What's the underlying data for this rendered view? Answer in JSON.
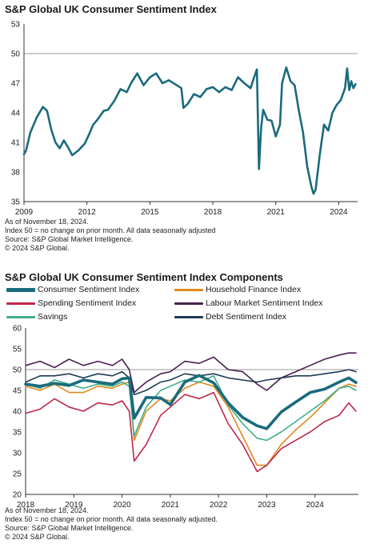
{
  "chart_data": [
    {
      "type": "line",
      "title": "S&P Global UK Consumer Sentiment Index",
      "xlabel": "",
      "ylabel": "",
      "ylim": [
        35,
        53
      ],
      "xlim": [
        2009.0,
        2024.9
      ],
      "yticks": [
        35,
        38,
        41,
        44,
        47,
        50,
        53
      ],
      "xticks": [
        "2009",
        "2012",
        "2015",
        "2018",
        "2021",
        "2024"
      ],
      "reference_line": 50,
      "grid": false,
      "colors": {
        "series": "#1a6b7c",
        "reference": "#999999",
        "axis": "#333333"
      },
      "series": [
        {
          "x": [
            2009.0,
            2009.1,
            2009.3,
            2009.6,
            2009.9,
            2010.1,
            2010.3,
            2010.5,
            2010.7,
            2010.9,
            2011.1,
            2011.3,
            2011.6,
            2011.9,
            2012.1,
            2012.3,
            2012.5,
            2012.8,
            2013.0,
            2013.3,
            2013.6,
            2013.9,
            2014.1,
            2014.4,
            2014.7,
            2015.0,
            2015.3,
            2015.6,
            2015.9,
            2016.2,
            2016.5,
            2016.6,
            2016.8,
            2017.1,
            2017.4,
            2017.7,
            2018.0,
            2018.3,
            2018.6,
            2018.9,
            2019.2,
            2019.5,
            2019.8,
            2020.0,
            2020.1,
            2020.2,
            2020.3,
            2020.4,
            2020.6,
            2020.8,
            2021.0,
            2021.2,
            2021.3,
            2021.5,
            2021.7,
            2021.9,
            2022.1,
            2022.3,
            2022.5,
            2022.7,
            2022.8,
            2022.9,
            2023.1,
            2023.3,
            2023.5,
            2023.7,
            2023.9,
            2024.1,
            2024.3,
            2024.4,
            2024.5,
            2024.6,
            2024.7,
            2024.8
          ],
          "y": [
            39.8,
            40.2,
            42.0,
            43.5,
            44.6,
            44.2,
            42.3,
            41.0,
            40.4,
            41.2,
            40.5,
            39.7,
            40.2,
            40.9,
            41.8,
            42.8,
            43.3,
            44.2,
            44.3,
            45.2,
            46.4,
            46.1,
            47.0,
            48.0,
            46.8,
            47.6,
            48.0,
            47.0,
            47.3,
            46.9,
            46.5,
            44.5,
            44.9,
            45.9,
            45.6,
            46.4,
            46.6,
            46.1,
            46.6,
            46.3,
            47.6,
            47.0,
            46.5,
            47.8,
            48.4,
            38.3,
            42.5,
            44.3,
            43.3,
            43.2,
            41.6,
            42.8,
            47.0,
            48.6,
            47.2,
            46.8,
            44.2,
            42.0,
            38.5,
            36.5,
            35.8,
            36.2,
            39.8,
            42.8,
            42.2,
            44.0,
            44.8,
            45.3,
            46.5,
            48.5,
            46.3,
            47.2,
            46.5,
            46.9
          ]
        }
      ]
    },
    {
      "type": "line",
      "title": "S&P Global UK Consumer Sentiment Index Components",
      "xlabel": "",
      "ylabel": "",
      "ylim": [
        20,
        60
      ],
      "xlim": [
        2018.0,
        2024.9
      ],
      "yticks": [
        20,
        25,
        30,
        35,
        40,
        45,
        50,
        55,
        60
      ],
      "xticks": [
        "2018",
        "2019",
        "2020",
        "2021",
        "2022",
        "2023",
        "2024"
      ],
      "reference_line": 50,
      "grid": false,
      "legend_position": "top",
      "series": [
        {
          "name": "Labour Market Sentiment Index",
          "color": "#4a2050",
          "x": [
            2018.0,
            2018.3,
            2018.6,
            2018.9,
            2019.2,
            2019.5,
            2019.8,
            2020.0,
            2020.15,
            2020.25,
            2020.5,
            2020.8,
            2021.0,
            2021.3,
            2021.6,
            2021.9,
            2022.2,
            2022.5,
            2022.8,
            2023.0,
            2023.3,
            2023.6,
            2023.9,
            2024.2,
            2024.5,
            2024.7,
            2024.85
          ],
          "y": [
            51.0,
            52.0,
            50.5,
            52.5,
            51.0,
            52.0,
            51.0,
            52.5,
            50.0,
            44.5,
            47.0,
            49.0,
            49.5,
            52.0,
            51.5,
            53.0,
            50.0,
            49.5,
            46.5,
            45.0,
            48.0,
            49.5,
            51.0,
            52.5,
            53.5,
            54.0,
            54.0
          ]
        },
        {
          "name": "Debt Sentiment Index",
          "color": "#1f3a55",
          "x": [
            2018.0,
            2018.3,
            2018.6,
            2018.9,
            2019.2,
            2019.5,
            2019.8,
            2020.0,
            2020.15,
            2020.25,
            2020.5,
            2020.8,
            2021.0,
            2021.3,
            2021.6,
            2021.9,
            2022.2,
            2022.5,
            2022.8,
            2023.0,
            2023.3,
            2023.6,
            2023.9,
            2024.2,
            2024.5,
            2024.7,
            2024.85
          ],
          "y": [
            47.0,
            48.5,
            48.5,
            49.0,
            48.0,
            49.0,
            48.5,
            49.5,
            48.0,
            44.0,
            45.0,
            47.0,
            47.5,
            49.0,
            48.5,
            49.0,
            48.0,
            47.5,
            47.0,
            47.5,
            48.0,
            48.5,
            48.5,
            49.0,
            49.5,
            50.0,
            49.5
          ]
        },
        {
          "name": "Household Finance Index",
          "color": "#e08a1e",
          "x": [
            2018.0,
            2018.3,
            2018.6,
            2018.9,
            2019.2,
            2019.5,
            2019.8,
            2020.0,
            2020.15,
            2020.25,
            2020.5,
            2020.8,
            2021.0,
            2021.3,
            2021.6,
            2021.9,
            2022.2,
            2022.5,
            2022.8,
            2023.0,
            2023.3,
            2023.6,
            2023.9,
            2024.2,
            2024.5,
            2024.7,
            2024.85
          ],
          "y": [
            46.0,
            45.0,
            46.5,
            44.5,
            44.5,
            46.0,
            45.5,
            46.5,
            47.0,
            33.0,
            40.0,
            43.0,
            42.5,
            45.5,
            47.0,
            46.0,
            41.0,
            34.0,
            27.0,
            27.0,
            32.0,
            35.5,
            38.5,
            42.0,
            45.5,
            46.5,
            46.0
          ]
        },
        {
          "name": "Spending Sentiment Index",
          "color": "#c0264a",
          "x": [
            2018.0,
            2018.3,
            2018.6,
            2018.9,
            2019.2,
            2019.5,
            2019.8,
            2020.0,
            2020.15,
            2020.25,
            2020.5,
            2020.8,
            2021.0,
            2021.3,
            2021.6,
            2021.9,
            2022.2,
            2022.5,
            2022.8,
            2023.0,
            2023.3,
            2023.6,
            2023.9,
            2024.2,
            2024.5,
            2024.7,
            2024.85
          ],
          "y": [
            39.5,
            40.5,
            43.0,
            41.0,
            40.0,
            42.0,
            41.5,
            42.5,
            40.0,
            28.0,
            32.0,
            39.0,
            41.0,
            44.0,
            43.0,
            44.5,
            37.0,
            32.0,
            25.5,
            27.0,
            31.0,
            33.0,
            35.0,
            37.5,
            39.0,
            42.0,
            40.0
          ]
        },
        {
          "name": "Savings",
          "color": "#3fae8a",
          "x": [
            2018.0,
            2018.3,
            2018.6,
            2018.9,
            2019.2,
            2019.5,
            2019.8,
            2020.0,
            2020.15,
            2020.25,
            2020.5,
            2020.8,
            2021.0,
            2021.3,
            2021.6,
            2021.9,
            2022.2,
            2022.5,
            2022.8,
            2023.0,
            2023.3,
            2023.6,
            2023.9,
            2024.2,
            2024.5,
            2024.7,
            2024.85
          ],
          "y": [
            46.5,
            45.5,
            47.5,
            46.5,
            45.5,
            46.5,
            46.0,
            47.0,
            46.0,
            34.0,
            41.0,
            45.0,
            46.0,
            47.5,
            47.0,
            48.5,
            41.5,
            37.0,
            33.5,
            33.0,
            35.0,
            37.5,
            40.0,
            42.5,
            45.5,
            46.0,
            45.0
          ]
        },
        {
          "name": "Consumer Sentiment Index",
          "color": "#1a6b7c",
          "x": [
            2018.0,
            2018.3,
            2018.6,
            2018.9,
            2019.2,
            2019.5,
            2019.8,
            2020.0,
            2020.15,
            2020.25,
            2020.5,
            2020.8,
            2021.0,
            2021.3,
            2021.6,
            2021.9,
            2022.2,
            2022.5,
            2022.8,
            2023.0,
            2023.3,
            2023.6,
            2023.9,
            2024.2,
            2024.5,
            2024.7,
            2024.85
          ],
          "y": [
            46.5,
            46.0,
            46.7,
            46.2,
            47.5,
            47.0,
            46.5,
            47.8,
            48.0,
            38.3,
            43.3,
            43.2,
            41.6,
            47.0,
            48.6,
            46.8,
            42.0,
            38.5,
            36.5,
            35.8,
            39.8,
            42.2,
            44.5,
            45.3,
            47.0,
            48.0,
            46.9
          ]
        }
      ]
    }
  ],
  "legend": [
    {
      "label": "Consumer Sentiment Index",
      "color": "#1a6b7c",
      "thick": true
    },
    {
      "label": "Household Finance Index",
      "color": "#e08a1e"
    },
    {
      "label": "Spending Sentiment Index",
      "color": "#c0264a"
    },
    {
      "label": "Labour Market Sentiment Index",
      "color": "#4a2050"
    },
    {
      "label": "Savings",
      "color": "#3fae8a"
    },
    {
      "label": "Debt Sentiment Index",
      "color": "#1f3a55"
    }
  ],
  "notes1": [
    "As of November 18, 2024.",
    "Index 50 = no change on prior month. All data seasonally adjusted",
    "Source: S&P Global Market Intelligence.",
    "© 2024 S&P Global."
  ],
  "notes2": [
    "As of November 18, 2024.",
    "Index 50 = no change on prior month. All data seasonally adjusted.",
    "Source: S&P Global Market Intelligence.",
    "© 2024 S&P Global."
  ]
}
